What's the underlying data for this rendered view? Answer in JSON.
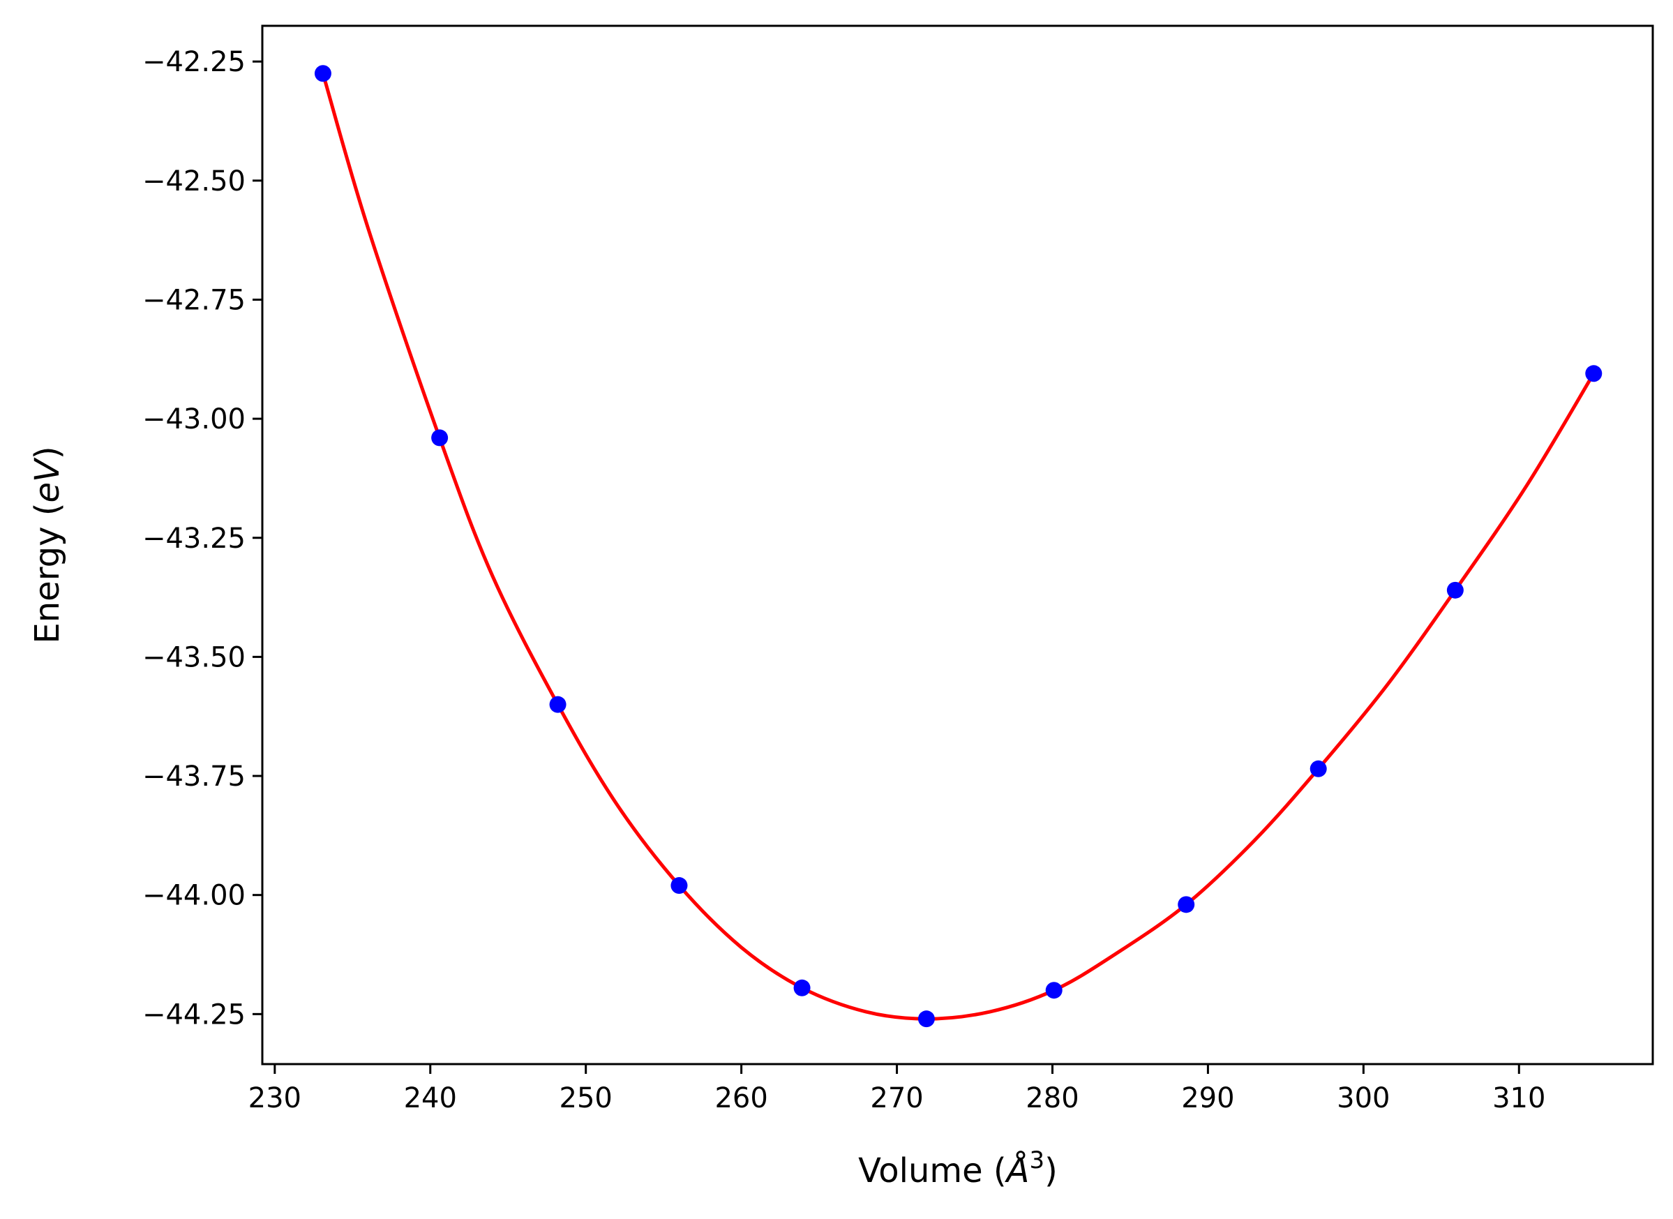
{
  "chart_data": {
    "type": "scatter",
    "title": "",
    "xlabel": "Volume (Å³)",
    "ylabel": "Energy (eV)",
    "xlabel_parts": {
      "prefix": "Volume (",
      "symbol": "Å",
      "exponent": "3",
      "suffix": ")"
    },
    "ylabel_parts": {
      "prefix": "Energy (",
      "unit": "eV",
      "suffix": ")"
    },
    "xlim": [
      229.2,
      318.6
    ],
    "ylim": [
      -44.355,
      -42.175
    ],
    "xticks": [
      230,
      240,
      250,
      260,
      270,
      280,
      290,
      300,
      310
    ],
    "xtick_labels": [
      "230",
      "240",
      "250",
      "260",
      "270",
      "280",
      "290",
      "300",
      "310"
    ],
    "yticks": [
      -42.25,
      -42.5,
      -42.75,
      -43.0,
      -43.25,
      -43.5,
      -43.75,
      -44.0,
      -44.25
    ],
    "ytick_labels": [
      "−42.25",
      "−42.50",
      "−42.75",
      "−43.00",
      "−43.25",
      "−43.50",
      "−43.75",
      "−44.00",
      "−44.25"
    ],
    "grid": false,
    "series": [
      {
        "kind": "points",
        "color": "#0000ff",
        "x": [
          233.1,
          240.6,
          248.2,
          256.0,
          263.9,
          271.9,
          280.1,
          288.6,
          297.1,
          305.9,
          314.8
        ],
        "y": [
          -42.275,
          -43.04,
          -43.6,
          -43.98,
          -44.195,
          -44.26,
          -44.2,
          -44.02,
          -43.735,
          -43.36,
          -42.905
        ]
      },
      {
        "kind": "fit-curve",
        "color": "#ff0000",
        "x": [
          233.1,
          236.0,
          240.6,
          244.0,
          248.2,
          252.0,
          256.0,
          260.0,
          263.9,
          268.0,
          271.9,
          276.0,
          280.1,
          284.0,
          288.6,
          293.0,
          297.1,
          301.5,
          305.9,
          310.5,
          314.8
        ],
        "y": [
          -42.275,
          -42.6,
          -43.04,
          -43.33,
          -43.6,
          -43.81,
          -43.98,
          -44.11,
          -44.195,
          -44.245,
          -44.26,
          -44.245,
          -44.2,
          -44.125,
          -44.02,
          -43.885,
          -43.735,
          -43.56,
          -43.36,
          -43.14,
          -42.905
        ]
      }
    ]
  }
}
